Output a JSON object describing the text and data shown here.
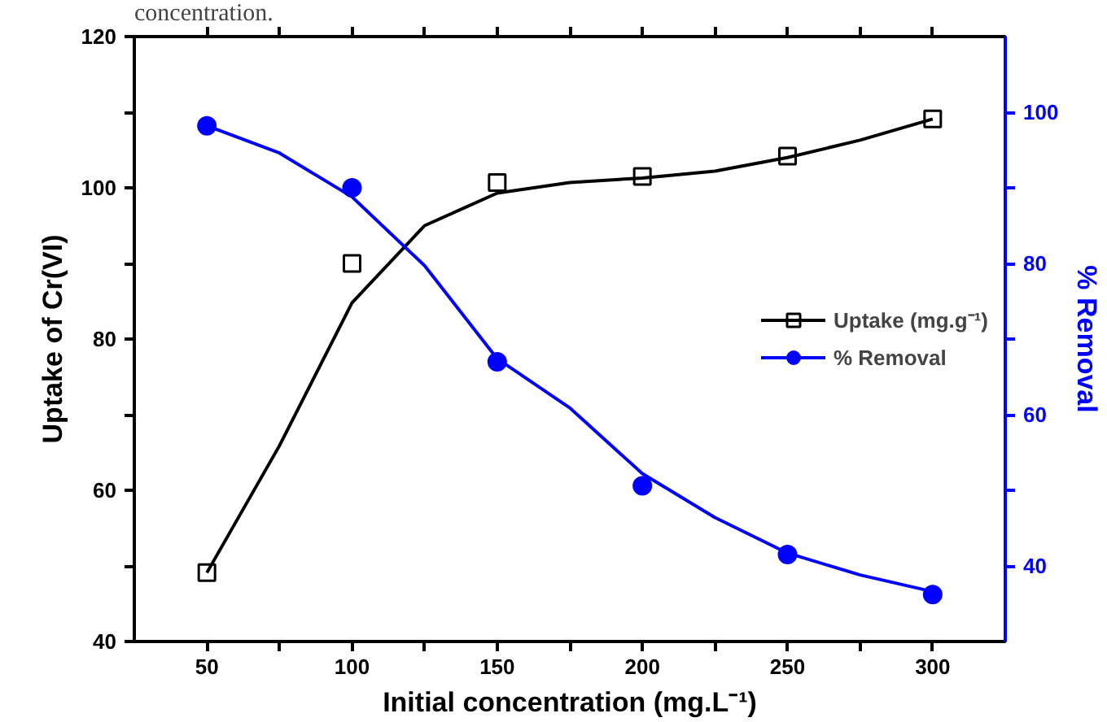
{
  "chart_data": {
    "type": "scatter",
    "xlabel": "Initial concentration (mg.L⁻¹)",
    "ylabel": "Uptake of Cr(VI)",
    "y2label": "% Removal",
    "annotations": [
      "concentration."
    ],
    "xlim": [
      25,
      325
    ],
    "xticks": [
      50,
      {
        "value": 75,
        "label": null
      },
      100,
      {
        "value": 125,
        "label": null
      },
      150,
      {
        "value": 175,
        "label": null
      },
      200,
      {
        "value": 225,
        "label": null
      },
      250,
      {
        "value": 275,
        "label": null
      },
      300
    ],
    "ylim": [
      40,
      120
    ],
    "yticks": [
      40,
      {
        "value": 50,
        "label": null
      },
      60,
      {
        "value": 70,
        "label": null
      },
      80,
      {
        "value": 90,
        "label": null
      },
      100,
      {
        "value": 110,
        "label": null
      },
      120
    ],
    "y2lim": [
      30,
      110
    ],
    "y2ticks": [
      40,
      {
        "value": 50,
        "label": null
      },
      60,
      {
        "value": 70,
        "label": null
      },
      80,
      {
        "value": 90,
        "label": null
      },
      100
    ],
    "grid": false,
    "legend": "right",
    "series": [
      {
        "name": "Uptake (mg.g⁻¹)",
        "marker": "square",
        "color": "#000000",
        "x": [
          50,
          100,
          150,
          200,
          250,
          300
        ],
        "values": [
          49.1,
          90,
          100.7,
          101.5,
          104.2,
          109.1
        ]
      },
      {
        "type": "line",
        "color": "#000000",
        "x": [
          50,
          75,
          100,
          125,
          150,
          175,
          200,
          225,
          250,
          275,
          300
        ],
        "values": [
          49.1,
          65.9,
          84.8,
          95,
          99.3,
          100.7,
          101.3,
          102.2,
          104,
          106.3,
          109.1
        ]
      },
      {
        "name": "% Removal",
        "marker": "circle",
        "axis": "y2",
        "color": "#0000ff",
        "x": [
          50,
          100,
          150,
          200,
          250,
          300
        ],
        "values": [
          98.2,
          90,
          67,
          50.6,
          41.5,
          36.2
        ]
      },
      {
        "type": "line",
        "axis": "y2",
        "color": "#0000ff",
        "x": [
          50,
          75,
          100,
          125,
          150,
          175,
          200,
          225,
          250,
          275,
          300
        ],
        "values": [
          98.2,
          94.6,
          88.8,
          79.7,
          67.4,
          60.9,
          52.2,
          46.4,
          41.7,
          38.8,
          36.6
        ]
      }
    ]
  }
}
